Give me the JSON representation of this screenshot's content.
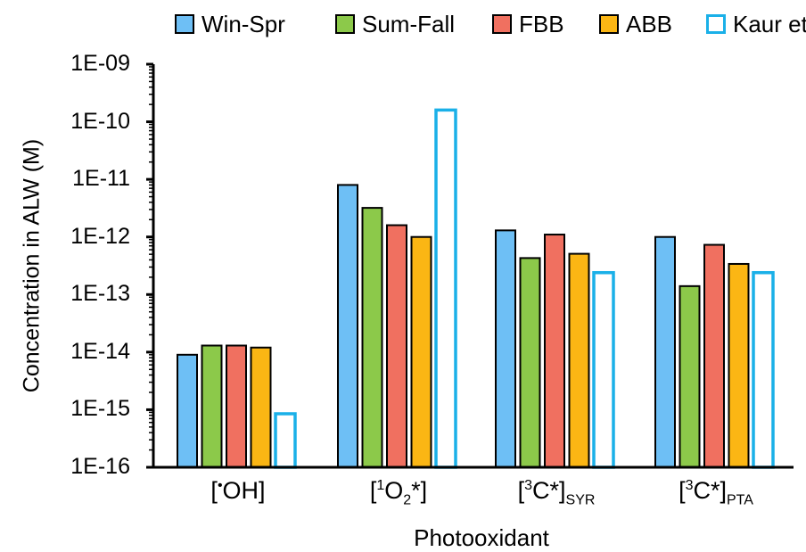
{
  "chart_data": {
    "type": "bar",
    "yscale": "log",
    "ylim": [
      1e-16,
      1e-09
    ],
    "ylabel": "Concentration in ALW (M)",
    "xlabel": "Photooxidant",
    "y_ticks": [
      {
        "value": 1e-09,
        "label": "1E-09"
      },
      {
        "value": 1e-10,
        "label": "1E-10"
      },
      {
        "value": 1e-11,
        "label": "1E-11"
      },
      {
        "value": 1e-12,
        "label": "1E-12"
      },
      {
        "value": 1e-13,
        "label": "1E-13"
      },
      {
        "value": 1e-14,
        "label": "1E-14"
      },
      {
        "value": 1e-15,
        "label": "1E-15"
      },
      {
        "value": 1e-16,
        "label": "1E-16"
      }
    ],
    "categories": [
      {
        "pre": "[",
        "sup": "•",
        "mid": "OH",
        "sub": "",
        "post": "]"
      },
      {
        "pre": "[",
        "sup": "1",
        "mid": "O",
        "sub": "2",
        "post": "*]"
      },
      {
        "pre": "[",
        "sup": "3",
        "mid": "C*]",
        "sub": "SYR",
        "post": ""
      },
      {
        "pre": "[",
        "sup": "3",
        "mid": "C*]",
        "sub": "PTA",
        "post": ""
      }
    ],
    "series": [
      {
        "name": "Win-Spr",
        "fill": "#6ebff5",
        "stroke": "#000000",
        "values": [
          9e-15,
          8e-12,
          1.3e-12,
          1e-12
        ]
      },
      {
        "name": "Sum-Fall",
        "fill": "#8cc94a",
        "stroke": "#000000",
        "values": [
          1.3e-14,
          3.2e-12,
          4.3e-13,
          1.4e-13
        ]
      },
      {
        "name": "FBB",
        "fill": "#f07060",
        "stroke": "#000000",
        "values": [
          1.3e-14,
          1.6e-12,
          1.1e-12,
          7.3e-13
        ]
      },
      {
        "name": "ABB",
        "fill": "#fbb614",
        "stroke": "#000000",
        "values": [
          1.2e-14,
          1e-12,
          5.1e-13,
          3.4e-13
        ]
      },
      {
        "name": "Kaur et al.",
        "fill": "#ffffff",
        "stroke": "#1ab0e8",
        "values": [
          8.5e-16,
          1.6e-10,
          2.4e-13,
          2.4e-13
        ]
      }
    ],
    "legend_position": "top",
    "grid": false
  }
}
